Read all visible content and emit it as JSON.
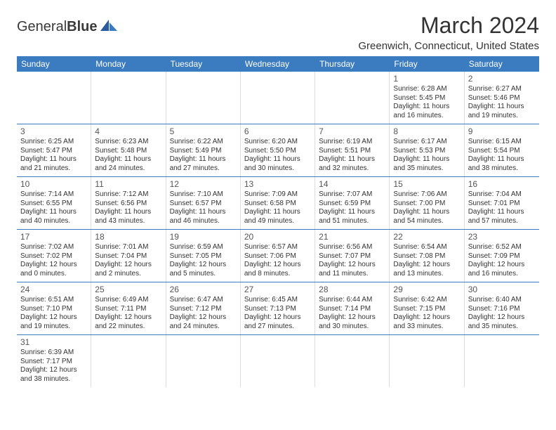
{
  "logo": {
    "text1": "General",
    "text2": "Blue"
  },
  "title": "March 2024",
  "location": "Greenwich, Connecticut, United States",
  "colors": {
    "header_bg": "#3b7bbf",
    "header_text": "#ffffff",
    "border": "#3b7bbf",
    "cell_border": "#dddddd",
    "text": "#333333"
  },
  "day_names": [
    "Sunday",
    "Monday",
    "Tuesday",
    "Wednesday",
    "Thursday",
    "Friday",
    "Saturday"
  ],
  "weeks": [
    [
      null,
      null,
      null,
      null,
      null,
      {
        "n": "1",
        "sr": "Sunrise: 6:28 AM",
        "ss": "Sunset: 5:45 PM",
        "d1": "Daylight: 11 hours",
        "d2": "and 16 minutes."
      },
      {
        "n": "2",
        "sr": "Sunrise: 6:27 AM",
        "ss": "Sunset: 5:46 PM",
        "d1": "Daylight: 11 hours",
        "d2": "and 19 minutes."
      }
    ],
    [
      {
        "n": "3",
        "sr": "Sunrise: 6:25 AM",
        "ss": "Sunset: 5:47 PM",
        "d1": "Daylight: 11 hours",
        "d2": "and 21 minutes."
      },
      {
        "n": "4",
        "sr": "Sunrise: 6:23 AM",
        "ss": "Sunset: 5:48 PM",
        "d1": "Daylight: 11 hours",
        "d2": "and 24 minutes."
      },
      {
        "n": "5",
        "sr": "Sunrise: 6:22 AM",
        "ss": "Sunset: 5:49 PM",
        "d1": "Daylight: 11 hours",
        "d2": "and 27 minutes."
      },
      {
        "n": "6",
        "sr": "Sunrise: 6:20 AM",
        "ss": "Sunset: 5:50 PM",
        "d1": "Daylight: 11 hours",
        "d2": "and 30 minutes."
      },
      {
        "n": "7",
        "sr": "Sunrise: 6:19 AM",
        "ss": "Sunset: 5:51 PM",
        "d1": "Daylight: 11 hours",
        "d2": "and 32 minutes."
      },
      {
        "n": "8",
        "sr": "Sunrise: 6:17 AM",
        "ss": "Sunset: 5:53 PM",
        "d1": "Daylight: 11 hours",
        "d2": "and 35 minutes."
      },
      {
        "n": "9",
        "sr": "Sunrise: 6:15 AM",
        "ss": "Sunset: 5:54 PM",
        "d1": "Daylight: 11 hours",
        "d2": "and 38 minutes."
      }
    ],
    [
      {
        "n": "10",
        "sr": "Sunrise: 7:14 AM",
        "ss": "Sunset: 6:55 PM",
        "d1": "Daylight: 11 hours",
        "d2": "and 40 minutes."
      },
      {
        "n": "11",
        "sr": "Sunrise: 7:12 AM",
        "ss": "Sunset: 6:56 PM",
        "d1": "Daylight: 11 hours",
        "d2": "and 43 minutes."
      },
      {
        "n": "12",
        "sr": "Sunrise: 7:10 AM",
        "ss": "Sunset: 6:57 PM",
        "d1": "Daylight: 11 hours",
        "d2": "and 46 minutes."
      },
      {
        "n": "13",
        "sr": "Sunrise: 7:09 AM",
        "ss": "Sunset: 6:58 PM",
        "d1": "Daylight: 11 hours",
        "d2": "and 49 minutes."
      },
      {
        "n": "14",
        "sr": "Sunrise: 7:07 AM",
        "ss": "Sunset: 6:59 PM",
        "d1": "Daylight: 11 hours",
        "d2": "and 51 minutes."
      },
      {
        "n": "15",
        "sr": "Sunrise: 7:06 AM",
        "ss": "Sunset: 7:00 PM",
        "d1": "Daylight: 11 hours",
        "d2": "and 54 minutes."
      },
      {
        "n": "16",
        "sr": "Sunrise: 7:04 AM",
        "ss": "Sunset: 7:01 PM",
        "d1": "Daylight: 11 hours",
        "d2": "and 57 minutes."
      }
    ],
    [
      {
        "n": "17",
        "sr": "Sunrise: 7:02 AM",
        "ss": "Sunset: 7:02 PM",
        "d1": "Daylight: 12 hours",
        "d2": "and 0 minutes."
      },
      {
        "n": "18",
        "sr": "Sunrise: 7:01 AM",
        "ss": "Sunset: 7:04 PM",
        "d1": "Daylight: 12 hours",
        "d2": "and 2 minutes."
      },
      {
        "n": "19",
        "sr": "Sunrise: 6:59 AM",
        "ss": "Sunset: 7:05 PM",
        "d1": "Daylight: 12 hours",
        "d2": "and 5 minutes."
      },
      {
        "n": "20",
        "sr": "Sunrise: 6:57 AM",
        "ss": "Sunset: 7:06 PM",
        "d1": "Daylight: 12 hours",
        "d2": "and 8 minutes."
      },
      {
        "n": "21",
        "sr": "Sunrise: 6:56 AM",
        "ss": "Sunset: 7:07 PM",
        "d1": "Daylight: 12 hours",
        "d2": "and 11 minutes."
      },
      {
        "n": "22",
        "sr": "Sunrise: 6:54 AM",
        "ss": "Sunset: 7:08 PM",
        "d1": "Daylight: 12 hours",
        "d2": "and 13 minutes."
      },
      {
        "n": "23",
        "sr": "Sunrise: 6:52 AM",
        "ss": "Sunset: 7:09 PM",
        "d1": "Daylight: 12 hours",
        "d2": "and 16 minutes."
      }
    ],
    [
      {
        "n": "24",
        "sr": "Sunrise: 6:51 AM",
        "ss": "Sunset: 7:10 PM",
        "d1": "Daylight: 12 hours",
        "d2": "and 19 minutes."
      },
      {
        "n": "25",
        "sr": "Sunrise: 6:49 AM",
        "ss": "Sunset: 7:11 PM",
        "d1": "Daylight: 12 hours",
        "d2": "and 22 minutes."
      },
      {
        "n": "26",
        "sr": "Sunrise: 6:47 AM",
        "ss": "Sunset: 7:12 PM",
        "d1": "Daylight: 12 hours",
        "d2": "and 24 minutes."
      },
      {
        "n": "27",
        "sr": "Sunrise: 6:45 AM",
        "ss": "Sunset: 7:13 PM",
        "d1": "Daylight: 12 hours",
        "d2": "and 27 minutes."
      },
      {
        "n": "28",
        "sr": "Sunrise: 6:44 AM",
        "ss": "Sunset: 7:14 PM",
        "d1": "Daylight: 12 hours",
        "d2": "and 30 minutes."
      },
      {
        "n": "29",
        "sr": "Sunrise: 6:42 AM",
        "ss": "Sunset: 7:15 PM",
        "d1": "Daylight: 12 hours",
        "d2": "and 33 minutes."
      },
      {
        "n": "30",
        "sr": "Sunrise: 6:40 AM",
        "ss": "Sunset: 7:16 PM",
        "d1": "Daylight: 12 hours",
        "d2": "and 35 minutes."
      }
    ],
    [
      {
        "n": "31",
        "sr": "Sunrise: 6:39 AM",
        "ss": "Sunset: 7:17 PM",
        "d1": "Daylight: 12 hours",
        "d2": "and 38 minutes."
      },
      null,
      null,
      null,
      null,
      null,
      null
    ]
  ]
}
